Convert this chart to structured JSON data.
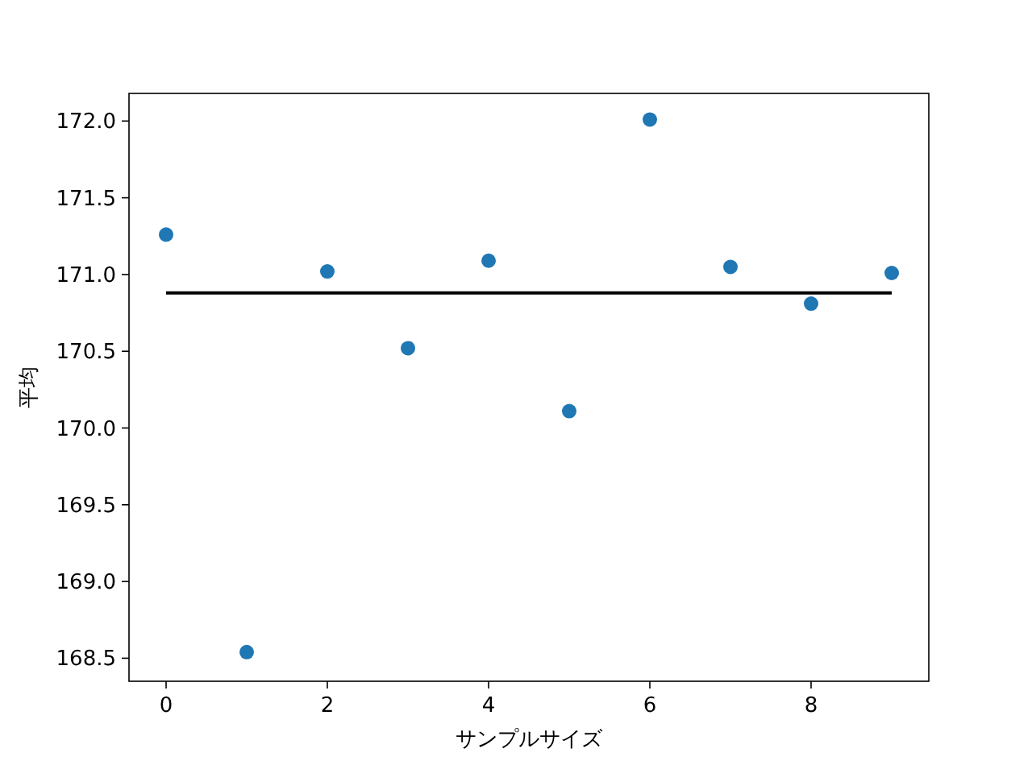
{
  "chart_data": {
    "type": "scatter",
    "xlabel": "サンプルサイズ",
    "ylabel": "平均",
    "xlim": [
      -0.46,
      9.46
    ],
    "ylim": [
      168.35,
      172.18
    ],
    "xticks": [
      0,
      2,
      4,
      6,
      8
    ],
    "yticks": [
      {
        "value": 168.5,
        "label": "168.5"
      },
      {
        "value": 169.0,
        "label": "169.0"
      },
      {
        "value": 169.5,
        "label": "169.5"
      },
      {
        "value": 170.0,
        "label": "170.0"
      },
      {
        "value": 170.5,
        "label": "170.5"
      },
      {
        "value": 171.0,
        "label": "171.0"
      },
      {
        "value": 171.5,
        "label": "171.5"
      },
      {
        "value": 172.0,
        "label": "172.0"
      }
    ],
    "grid": false,
    "series": [
      {
        "marker": "circle",
        "color": "#1f77b4",
        "x": [
          0,
          1,
          2,
          3,
          4,
          5,
          6,
          7,
          8,
          9
        ],
        "values": [
          171.26,
          168.54,
          171.02,
          170.52,
          171.09,
          170.11,
          172.01,
          171.05,
          170.81,
          171.01
        ]
      },
      {
        "type": "line",
        "color": "#000000",
        "x": [
          0,
          9
        ],
        "values": [
          170.88,
          170.88
        ]
      }
    ]
  }
}
